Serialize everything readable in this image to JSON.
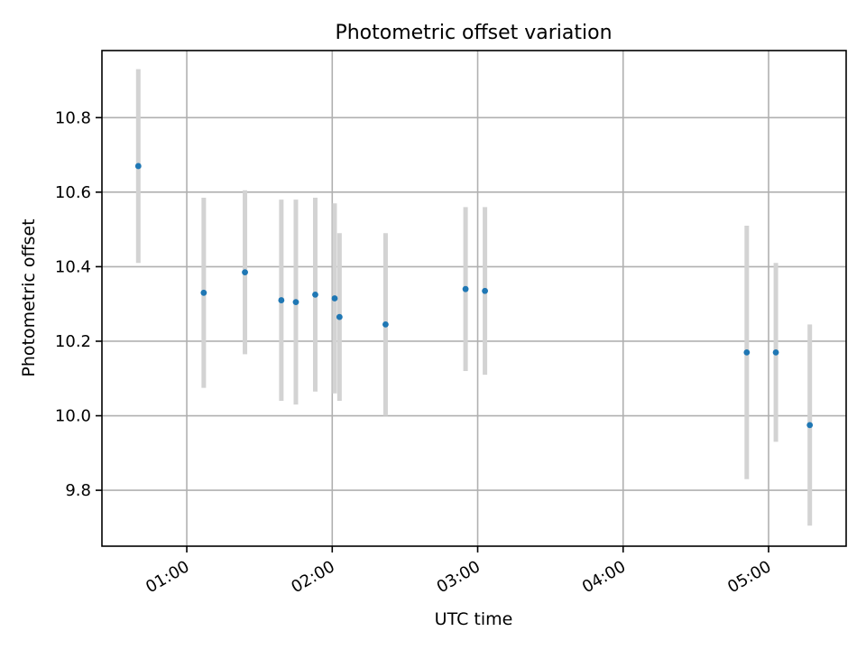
{
  "chart_data": {
    "type": "scatter",
    "title": "Photometric offset variation",
    "xlabel": "UTC time",
    "ylabel": "Photometric offset",
    "x_unit": "time of day (HH:MM, UTC)",
    "xlim": [
      "00:25",
      "05:32"
    ],
    "ylim": [
      9.65,
      10.98
    ],
    "x_ticks": [
      "01:00",
      "02:00",
      "03:00",
      "04:00",
      "05:00"
    ],
    "y_ticks": [
      9.8,
      10.0,
      10.2,
      10.4,
      10.6,
      10.8
    ],
    "grid": true,
    "legend": "none",
    "colors": {
      "point": "#1f77b4",
      "error_bar": "#d3d3d3",
      "grid": "#b0b0b0"
    },
    "points": [
      {
        "x": "00:40",
        "y": 10.67,
        "err": 0.26
      },
      {
        "x": "01:07",
        "y": 10.33,
        "err": 0.255
      },
      {
        "x": "01:24",
        "y": 10.385,
        "err": 0.22
      },
      {
        "x": "01:39",
        "y": 10.31,
        "err": 0.27
      },
      {
        "x": "01:45",
        "y": 10.305,
        "err": 0.275
      },
      {
        "x": "01:53",
        "y": 10.325,
        "err": 0.26
      },
      {
        "x": "02:01",
        "y": 10.315,
        "err": 0.255
      },
      {
        "x": "02:03",
        "y": 10.265,
        "err": 0.225
      },
      {
        "x": "02:22",
        "y": 10.245,
        "err": 0.245
      },
      {
        "x": "02:55",
        "y": 10.34,
        "err": 0.22
      },
      {
        "x": "03:03",
        "y": 10.335,
        "err": 0.225
      },
      {
        "x": "04:51",
        "y": 10.17,
        "err": 0.34
      },
      {
        "x": "05:03",
        "y": 10.17,
        "err": 0.24
      },
      {
        "x": "05:17",
        "y": 9.975,
        "err": 0.27
      }
    ]
  }
}
